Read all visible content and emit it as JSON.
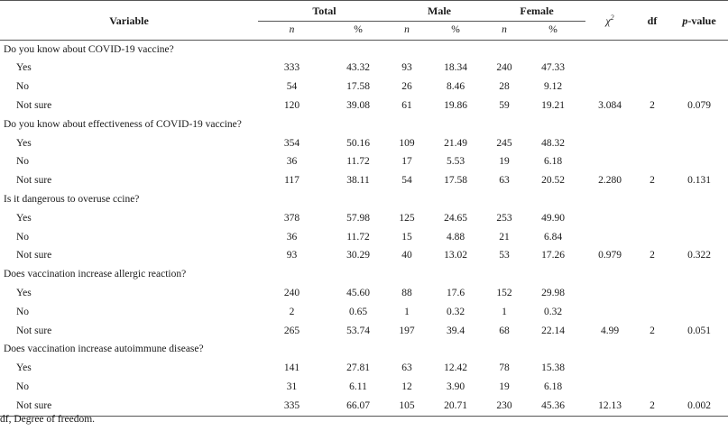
{
  "header": {
    "variable": "Variable",
    "total": "Total",
    "male": "Male",
    "female": "Female",
    "chi_symbol": "χ",
    "chi_sup": "2",
    "df": "df",
    "p_italic": "p",
    "p_rest": "-value",
    "n": "n",
    "pct": "%"
  },
  "questions": [
    {
      "text": "Do you know about COVID-19 vaccine?",
      "rows": [
        {
          "label": "Yes",
          "tn": "333",
          "tp": "43.32",
          "mn": "93",
          "mp": "18.34",
          "fn": "240",
          "fp": "47.33",
          "chi": "",
          "df": "",
          "p": ""
        },
        {
          "label": "No",
          "tn": "54",
          "tp": "17.58",
          "mn": "26",
          "mp": "8.46",
          "fn": "28",
          "fp": "9.12",
          "chi": "",
          "df": "",
          "p": ""
        },
        {
          "label": "Not sure",
          "tn": "120",
          "tp": "39.08",
          "mn": "61",
          "mp": "19.86",
          "fn": "59",
          "fp": "19.21",
          "chi": "3.084",
          "df": "2",
          "p": "0.079"
        }
      ]
    },
    {
      "text": "Do you know about effectiveness of COVID-19 vaccine?",
      "rows": [
        {
          "label": "Yes",
          "tn": "354",
          "tp": "50.16",
          "mn": "109",
          "mp": "21.49",
          "fn": "245",
          "fp": "48.32",
          "chi": "",
          "df": "",
          "p": ""
        },
        {
          "label": "No",
          "tn": "36",
          "tp": "11.72",
          "mn": "17",
          "mp": "5.53",
          "fn": "19",
          "fp": "6.18",
          "chi": "",
          "df": "",
          "p": ""
        },
        {
          "label": "Not sure",
          "tn": "117",
          "tp": "38.11",
          "mn": "54",
          "mp": "17.58",
          "fn": "63",
          "fp": "20.52",
          "chi": "2.280",
          "df": "2",
          "p": "0.131"
        }
      ]
    },
    {
      "text": "Is it dangerous to overuse ccine?",
      "rows": [
        {
          "label": "Yes",
          "tn": "378",
          "tp": "57.98",
          "mn": "125",
          "mp": "24.65",
          "fn": "253",
          "fp": "49.90",
          "chi": "",
          "df": "",
          "p": ""
        },
        {
          "label": "No",
          "tn": "36",
          "tp": "11.72",
          "mn": "15",
          "mp": "4.88",
          "fn": "21",
          "fp": "6.84",
          "chi": "",
          "df": "",
          "p": ""
        },
        {
          "label": "Not sure",
          "tn": "93",
          "tp": "30.29",
          "mn": "40",
          "mp": "13.02",
          "fn": "53",
          "fp": "17.26",
          "chi": "0.979",
          "df": "2",
          "p": "0.322"
        }
      ]
    },
    {
      "text": "Does vaccination increase allergic reaction?",
      "rows": [
        {
          "label": "Yes",
          "tn": "240",
          "tp": "45.60",
          "mn": "88",
          "mp": "17.6",
          "fn": "152",
          "fp": "29.98",
          "chi": "",
          "df": "",
          "p": ""
        },
        {
          "label": "No",
          "tn": "2",
          "tp": "0.65",
          "mn": "1",
          "mp": "0.32",
          "fn": "1",
          "fp": "0.32",
          "chi": "",
          "df": "",
          "p": ""
        },
        {
          "label": "Not sure",
          "tn": "265",
          "tp": "53.74",
          "mn": "197",
          "mp": "39.4",
          "fn": "68",
          "fp": "22.14",
          "chi": "4.99",
          "df": "2",
          "p": "0.051"
        }
      ]
    },
    {
      "text": "Does vaccination increase autoimmune disease?",
      "rows": [
        {
          "label": "Yes",
          "tn": "141",
          "tp": "27.81",
          "mn": "63",
          "mp": "12.42",
          "fn": "78",
          "fp": "15.38",
          "chi": "",
          "df": "",
          "p": ""
        },
        {
          "label": "No",
          "tn": "31",
          "tp": "6.11",
          "mn": "12",
          "mp": "3.90",
          "fn": "19",
          "fp": "6.18",
          "chi": "",
          "df": "",
          "p": ""
        },
        {
          "label": "Not sure",
          "tn": "335",
          "tp": "66.07",
          "mn": "105",
          "mp": "20.71",
          "fn": "230",
          "fp": "45.36",
          "chi": "12.13",
          "df": "2",
          "p": "0.002"
        }
      ]
    }
  ],
  "footnote": "df, Degree of freedom."
}
